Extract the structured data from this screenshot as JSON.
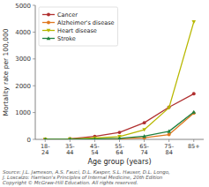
{
  "chart_data": {
    "type": "line",
    "categories": [
      "18-\n24",
      "35-\n44",
      "45-\n54",
      "55-\n64",
      "65-\n74",
      "75-\n84",
      "85+"
    ],
    "series": [
      {
        "name": "Cancer",
        "color": "#b03030",
        "marker": "circle",
        "line_style": "solid",
        "values": [
          8,
          20,
          110,
          260,
          620,
          1200,
          1700
        ]
      },
      {
        "name": "Alzheimer's disease",
        "color": "#e07820",
        "marker": "circle",
        "line_style": "solid",
        "values": [
          1,
          3,
          8,
          20,
          60,
          180,
          980
        ]
      },
      {
        "name": "Heart disease",
        "color": "#b8b800",
        "marker": "triangle-down",
        "line_style": "solid",
        "values": [
          4,
          15,
          50,
          100,
          360,
          1180,
          4380
        ]
      },
      {
        "name": "Stroke",
        "color": "#208040",
        "marker": "triangle-up",
        "line_style": "solid",
        "values": [
          2,
          6,
          15,
          40,
          120,
          300,
          1020
        ]
      }
    ],
    "xlabel": "Age group (years)",
    "ylabel": "Mortality rate per 100,000",
    "ylim": [
      0,
      5000
    ],
    "yticks": [
      0,
      1000,
      2000,
      3000,
      4000,
      5000
    ],
    "grid": false,
    "legend": "upper left",
    "annotations": [
      "Source: J.L. Jameson, A.S. Fauci, D.L. Kasper, S.L. Hauser, D.L. Longo,\nJ. Loscalzo: Harrison's Principles of Internal Medicine, 20th Edition\nCopyright © McGraw-Hill Education. All rights reserved."
    ]
  }
}
